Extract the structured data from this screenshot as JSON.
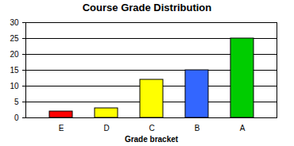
{
  "chart_data": {
    "type": "bar",
    "title": "Course Grade Distribution",
    "xlabel": "Grade bracket",
    "categories": [
      "E",
      "D",
      "C",
      "B",
      "A"
    ],
    "values": [
      2,
      3,
      12,
      15,
      25
    ],
    "colors": [
      "#ff0000",
      "#ffff00",
      "#ffff00",
      "#3366ff",
      "#00cc00"
    ],
    "ylim": [
      0,
      30
    ],
    "yticks": [
      0,
      5,
      10,
      15,
      20,
      25,
      30
    ],
    "grid": true
  }
}
